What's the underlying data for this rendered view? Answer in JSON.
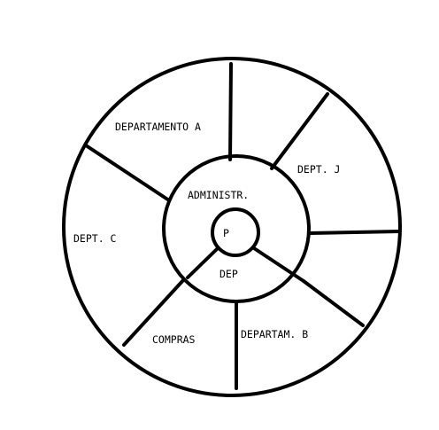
{
  "diagram": {
    "colors": {
      "stroke": "#000000",
      "background": "#ffffff"
    },
    "labels": {
      "departamento_a": "DEPARTAMENTO A",
      "dept_j": "DEPT. J",
      "dept_c": "DEPT. C",
      "administr": "ADMINISTR.",
      "p": "P",
      "dep": "DEP",
      "compras": "COMPRAS",
      "departam_b": "DEPARTAM. B"
    }
  }
}
